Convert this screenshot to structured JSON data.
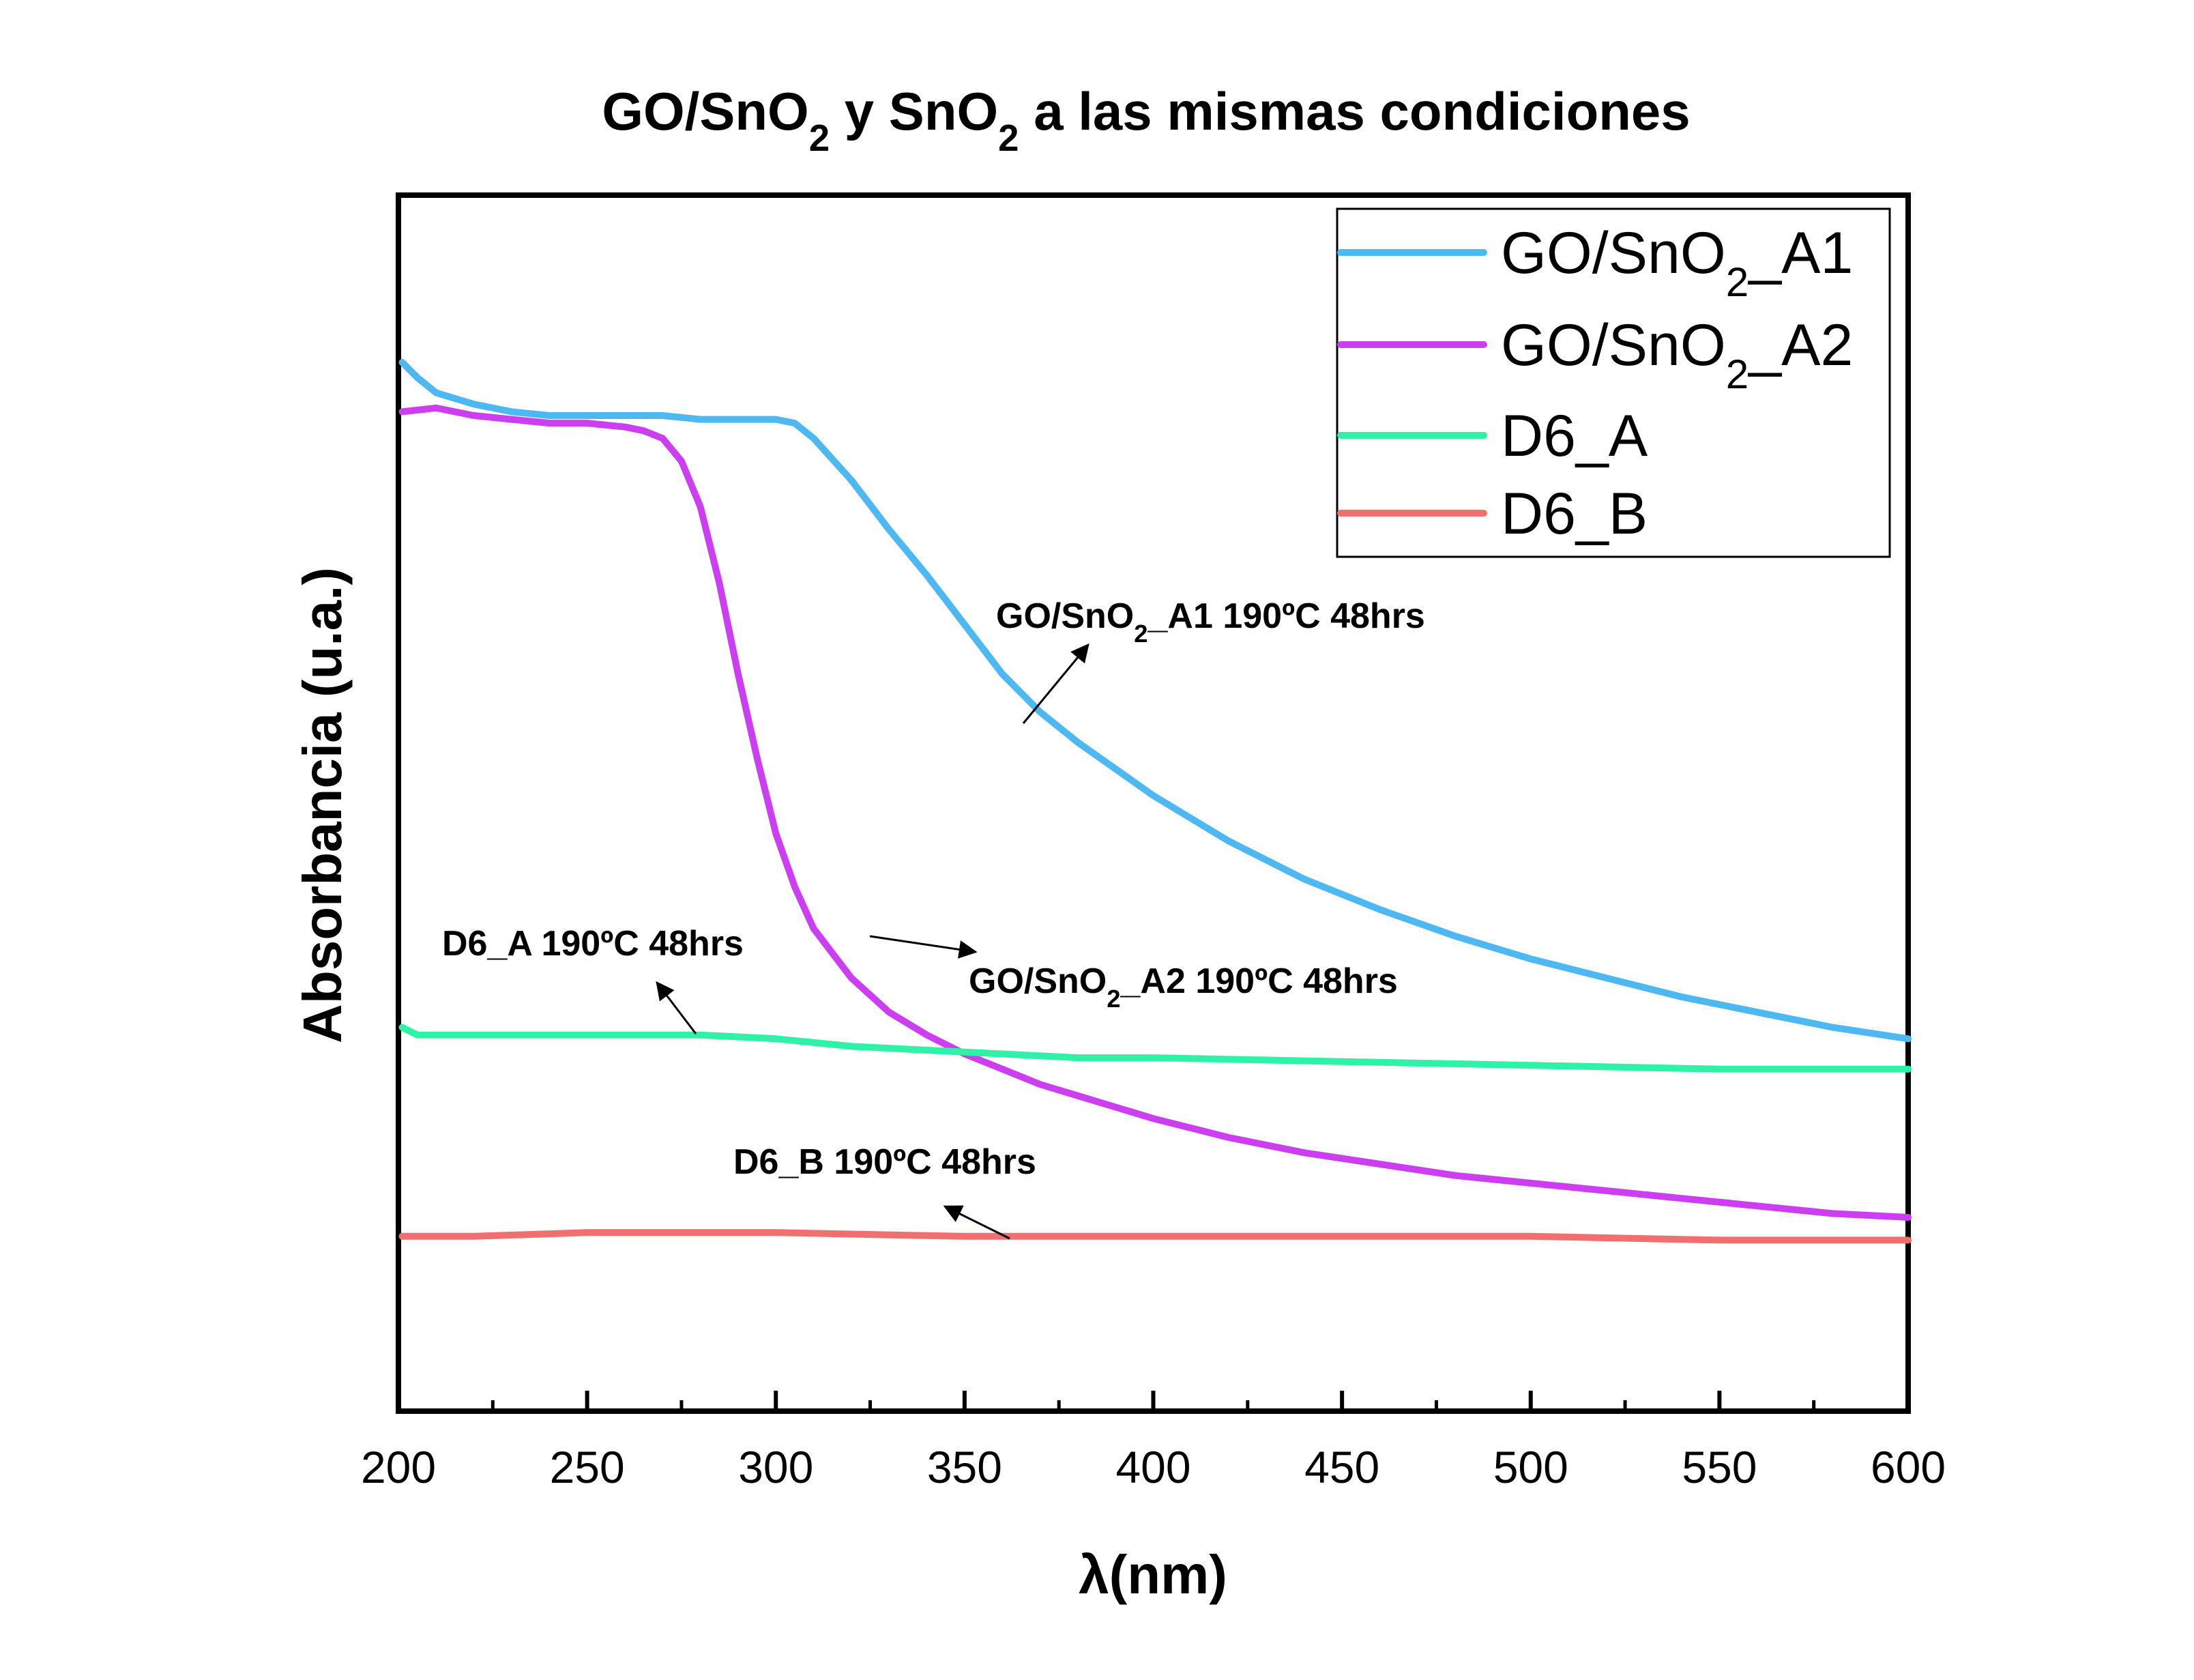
{
  "chart_data": {
    "type": "line",
    "title": "GO/SnO₂ y SnO₂ a las mismas condiciones",
    "xlabel": "λ(nm)",
    "ylabel": "Absorbancia (u.a.)",
    "xlim": [
      200,
      600
    ],
    "ylim": [
      0,
      3.2
    ],
    "x_ticks": [
      200,
      250,
      300,
      350,
      400,
      450,
      500,
      550,
      600
    ],
    "y_ticks_shown": false,
    "grid": false,
    "legend_position": "top-right",
    "series": [
      {
        "name": "GO/SnO₂_A1",
        "color": "#4db8f2",
        "x": [
          201,
          205,
          210,
          220,
          230,
          240,
          250,
          260,
          270,
          280,
          290,
          300,
          305,
          310,
          320,
          330,
          340,
          350,
          360,
          370,
          380,
          390,
          400,
          420,
          440,
          460,
          480,
          500,
          520,
          540,
          560,
          580,
          600
        ],
        "y": [
          2.76,
          2.72,
          2.68,
          2.65,
          2.63,
          2.62,
          2.62,
          2.62,
          2.62,
          2.61,
          2.61,
          2.61,
          2.6,
          2.56,
          2.45,
          2.32,
          2.2,
          2.07,
          1.94,
          1.84,
          1.76,
          1.69,
          1.62,
          1.5,
          1.4,
          1.32,
          1.25,
          1.19,
          1.14,
          1.09,
          1.05,
          1.01,
          0.98
        ]
      },
      {
        "name": "GO/SnO₂_A2",
        "color": "#cc3ff0",
        "x": [
          201,
          210,
          220,
          230,
          240,
          250,
          260,
          265,
          270,
          275,
          280,
          285,
          290,
          295,
          300,
          305,
          310,
          320,
          330,
          340,
          350,
          360,
          370,
          380,
          400,
          420,
          440,
          460,
          480,
          500,
          520,
          540,
          560,
          580,
          600
        ],
        "y": [
          2.63,
          2.64,
          2.62,
          2.61,
          2.6,
          2.6,
          2.59,
          2.58,
          2.56,
          2.5,
          2.38,
          2.18,
          1.94,
          1.72,
          1.52,
          1.38,
          1.27,
          1.14,
          1.05,
          0.99,
          0.94,
          0.9,
          0.86,
          0.83,
          0.77,
          0.72,
          0.68,
          0.65,
          0.62,
          0.6,
          0.58,
          0.56,
          0.54,
          0.52,
          0.51
        ]
      },
      {
        "name": "D6_A",
        "color": "#2ef2a8",
        "x": [
          201,
          205,
          220,
          240,
          260,
          280,
          300,
          320,
          340,
          360,
          380,
          400,
          450,
          500,
          550,
          600
        ],
        "y": [
          1.01,
          0.99,
          0.99,
          0.99,
          0.99,
          0.99,
          0.98,
          0.96,
          0.95,
          0.94,
          0.93,
          0.93,
          0.92,
          0.91,
          0.9,
          0.9
        ],
        "annotation": "D6_A 190ºC 48hrs"
      },
      {
        "name": "D6_B",
        "color": "#f07070",
        "x": [
          201,
          220,
          250,
          300,
          350,
          400,
          450,
          500,
          550,
          600
        ],
        "y": [
          0.46,
          0.46,
          0.47,
          0.47,
          0.46,
          0.46,
          0.46,
          0.46,
          0.45,
          0.45
        ],
        "annotation": "D6_B 190ºC 48hrs"
      }
    ],
    "annotations": [
      {
        "text": "GO/SnO₂_A1 190ºC 48hrs",
        "target_series": "GO/SnO₂_A1"
      },
      {
        "text": "GO/SnO₂_A2 190ºC 48hrs",
        "target_series": "GO/SnO₂_A2"
      },
      {
        "text": "D6_A 190ºC 48hrs",
        "target_series": "D6_A"
      },
      {
        "text": "D6_B 190ºC 48hrs",
        "target_series": "D6_B"
      }
    ]
  }
}
